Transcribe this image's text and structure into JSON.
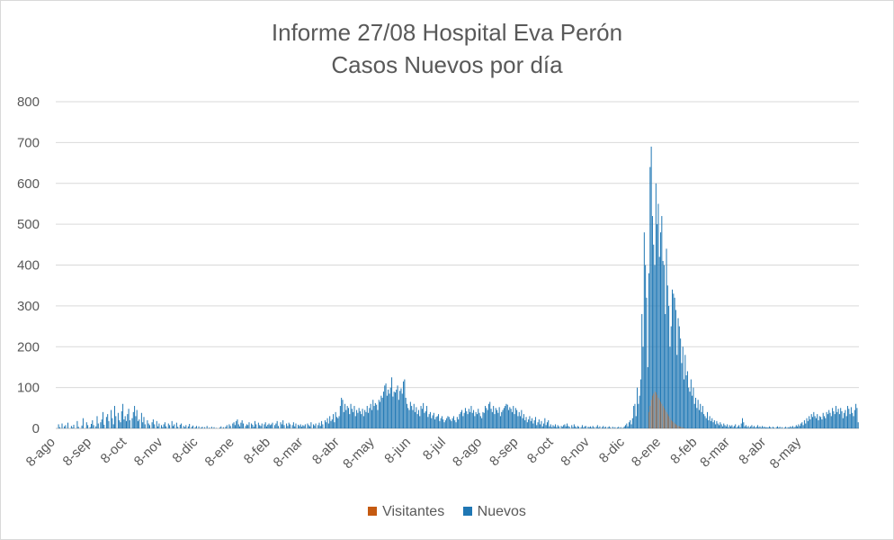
{
  "chart_data": {
    "type": "bar",
    "title": "Informe 27/08 Hospital Eva Perón",
    "subtitle": "Casos Nuevos por día",
    "xlabel": "",
    "ylabel": "",
    "ylim": [
      0,
      800
    ],
    "yticks": [
      "0",
      "100",
      "200",
      "300",
      "400",
      "500",
      "600",
      "700",
      "800"
    ],
    "x_tick_labels": [
      "8-ago",
      "8-sep",
      "8-oct",
      "8-nov",
      "8-dic",
      "8-ene",
      "8-feb",
      "8-mar",
      "8-abr",
      "8-may",
      "8-jun",
      "8-jul",
      "8-ago",
      "8-sep",
      "8-oct",
      "8-nov",
      "8-dic",
      "8-ene",
      "8-feb",
      "8-mar",
      "8-abr",
      "8-may"
    ],
    "legend": {
      "position": "bottom",
      "items": [
        "Visitantes",
        "Nuevos"
      ]
    },
    "colors": {
      "Visitantes": "#c55a11",
      "Nuevos": "#1f77b4"
    },
    "series": [
      {
        "name": "Nuevos",
        "values_by_month": [
          {
            "month": "8-ago",
            "values": [
              0,
              0,
              10,
              3,
              0,
              12,
              0,
              5,
              8,
              0,
              14,
              0,
              0,
              6,
              2,
              9,
              0,
              0,
              18,
              4,
              0,
              0,
              7,
              25,
              0,
              0,
              15,
              8,
              0,
              3,
              11
            ]
          },
          {
            "month": "8-sep",
            "values": [
              20,
              8,
              0,
              5,
              30,
              12,
              0,
              15,
              22,
              40,
              9,
              0,
              28,
              35,
              18,
              0,
              45,
              25,
              10,
              55,
              30,
              0,
              38,
              20,
              15,
              42,
              60,
              22,
              30,
              18
            ]
          },
          {
            "month": "8-oct",
            "values": [
              35,
              48,
              20,
              0,
              25,
              40,
              55,
              30,
              45,
              18,
              22,
              0,
              38,
              15,
              28,
              10,
              0,
              20,
              12,
              8,
              0,
              15,
              22,
              10,
              0,
              18,
              5,
              12,
              0,
              8,
              3
            ]
          },
          {
            "month": "8-nov",
            "values": [
              10,
              15,
              5,
              0,
              12,
              8,
              0,
              18,
              6,
              10,
              0,
              14,
              4,
              0,
              9,
              12,
              0,
              6,
              3,
              8,
              0,
              5,
              11,
              0,
              4,
              7,
              0,
              3,
              6,
              0
            ]
          },
          {
            "month": "8-dic",
            "values": [
              5,
              0,
              2,
              4,
              0,
              3,
              0,
              6,
              0,
              2,
              0,
              4,
              0,
              3,
              0,
              1,
              0,
              0,
              2,
              5,
              0,
              3,
              0,
              4,
              8,
              0,
              10,
              6,
              0,
              12,
              15
            ]
          },
          {
            "month": "8-ene",
            "values": [
              8,
              18,
              22,
              10,
              5,
              14,
              20,
              12,
              0,
              6,
              10,
              8,
              15,
              0,
              12,
              9,
              4,
              18,
              10,
              0,
              14,
              8,
              6,
              12,
              0,
              10,
              15,
              5,
              9,
              12,
              8
            ]
          },
          {
            "month": "8-feb",
            "values": [
              10,
              14,
              0,
              8,
              12,
              18,
              6,
              0,
              15,
              10,
              20,
              8,
              0,
              12,
              6,
              14,
              10,
              0,
              8,
              15,
              5,
              12,
              0,
              9,
              6,
              10,
              4,
              8
            ]
          },
          {
            "month": "8-mar",
            "values": [
              6,
              10,
              0,
              12,
              8,
              5,
              15,
              0,
              10,
              7,
              12,
              0,
              8,
              14,
              6,
              18,
              10,
              0,
              20,
              15,
              25,
              12,
              30,
              18,
              22,
              35,
              15,
              40,
              28,
              25,
              30
            ]
          },
          {
            "month": "8-abr",
            "values": [
              55,
              75,
              70,
              40,
              60,
              45,
              55,
              50,
              35,
              60,
              48,
              40,
              55,
              30,
              45,
              38,
              50,
              42,
              35,
              48,
              30,
              45,
              40,
              55,
              38,
              50,
              60,
              45,
              70,
              55
            ]
          },
          {
            "month": "8-may",
            "values": [
              62,
              58,
              45,
              70,
              65,
              80,
              75,
              90,
              105,
              110,
              80,
              95,
              85,
              100,
              125,
              78,
              90,
              88,
              95,
              105,
              70,
              92,
              98,
              85,
              115,
              120,
              75,
              60,
              50,
              45,
              65
            ]
          },
          {
            "month": "8-jun",
            "values": [
              55,
              45,
              60,
              40,
              52,
              35,
              45,
              30,
              55,
              48,
              62,
              38,
              42,
              55,
              28,
              35,
              40,
              25,
              32,
              38,
              22,
              28,
              30,
              35,
              18,
              25,
              30,
              22,
              15,
              20
            ]
          },
          {
            "month": "8-jul",
            "values": [
              25,
              30,
              28,
              22,
              18,
              25,
              30,
              20,
              15,
              28,
              22,
              35,
              40,
              45,
              30,
              38,
              50,
              42,
              35,
              48,
              40,
              55,
              38,
              45,
              30,
              40,
              35,
              48,
              38,
              30,
              25
            ]
          },
          {
            "month": "8-ago",
            "values": [
              40,
              38,
              55,
              50,
              45,
              60,
              65,
              48,
              40,
              55,
              35,
              50,
              45,
              38,
              52,
              30,
              40,
              45,
              50,
              55,
              60,
              58,
              45,
              52,
              48,
              40,
              55,
              35,
              50,
              45,
              30
            ]
          },
          {
            "month": "8-sep",
            "values": [
              40,
              30,
              45,
              25,
              35,
              20,
              28,
              15,
              22,
              30,
              18,
              25,
              12,
              20,
              28,
              8,
              15,
              22,
              10,
              18,
              5,
              12,
              25,
              8,
              15,
              20,
              5,
              10,
              3,
              8
            ]
          },
          {
            "month": "8-oct",
            "values": [
              5,
              10,
              3,
              8,
              5,
              0,
              6,
              4,
              8,
              10,
              5,
              12,
              6,
              4,
              0,
              8,
              3,
              10,
              5,
              2,
              6,
              4,
              0,
              3,
              8,
              2,
              5,
              6,
              0,
              4,
              3
            ]
          },
          {
            "month": "8-nov",
            "values": [
              5,
              2,
              6,
              3,
              0,
              4,
              8,
              2,
              5,
              0,
              3,
              6,
              2,
              4,
              0,
              3,
              5,
              2,
              0,
              4,
              1,
              3,
              0,
              2,
              4,
              1,
              3,
              0,
              2,
              5
            ]
          },
          {
            "month": "8-dic",
            "values": [
              8,
              12,
              5,
              15,
              20,
              10,
              25,
              55,
              60,
              30,
              100,
              60,
              80,
              120,
              280,
              200,
              480,
              400,
              320,
              150,
              380,
              640,
              690,
              520,
              450,
              400,
              600,
              500,
              550,
              420,
              480
            ]
          },
          {
            "month": "8-ene",
            "values": [
              520,
              410,
              400,
              280,
              440,
              350,
              300,
              200,
              250,
              340,
              330,
              320,
              290,
              180,
              270,
              250,
              220,
              160,
              200,
              120,
              180,
              130,
              140,
              100,
              90,
              120,
              80,
              100,
              60,
              75,
              50
            ]
          },
          {
            "month": "8-feb",
            "values": [
              70,
              45,
              60,
              40,
              55,
              35,
              30,
              25,
              40,
              20,
              30,
              18,
              25,
              15,
              20,
              10,
              18,
              12,
              8,
              15,
              10,
              5,
              12,
              8,
              5,
              10,
              3,
              8
            ]
          },
          {
            "month": "8-mar",
            "values": [
              5,
              8,
              3,
              6,
              10,
              2,
              5,
              8,
              3,
              12,
              25,
              15,
              5,
              8,
              3,
              6,
              2,
              5,
              8,
              3,
              6,
              2,
              4,
              8,
              3,
              5,
              2,
              6,
              3,
              4,
              2
            ]
          },
          {
            "month": "8-abr",
            "values": [
              3,
              2,
              5,
              3,
              1,
              4,
              2,
              0,
              3,
              5,
              2,
              4,
              1,
              3,
              0,
              2,
              4,
              1,
              3,
              2,
              5,
              3,
              6,
              2,
              4,
              8,
              5,
              10,
              6,
              12
            ]
          },
          {
            "month": "8-may",
            "values": [
              15,
              8,
              20,
              12,
              25,
              18,
              30,
              22,
              35,
              28,
              40,
              30,
              25,
              35,
              20,
              30,
              28,
              22,
              38,
              30,
              25,
              40,
              35,
              45,
              38,
              30,
              50,
              42,
              35,
              55,
              40,
              48,
              35,
              50,
              42,
              25,
              38,
              45,
              30,
              55,
              48,
              35,
              52,
              38,
              30,
              45,
              60,
              50,
              15
            ]
          }
        ]
      },
      {
        "name": "Visitantes",
        "values_by_month": [
          {
            "month": "8-dic",
            "values": [
              0,
              0,
              0,
              0,
              0,
              0,
              0,
              0,
              0,
              0,
              0,
              0,
              0,
              0,
              0,
              0,
              0,
              0,
              0,
              0,
              40,
              55,
              70,
              80,
              85,
              90,
              88,
              82,
              75,
              70,
              65
            ]
          },
          {
            "month": "8-ene",
            "values": [
              60,
              55,
              50,
              45,
              40,
              35,
              30,
              25,
              20,
              18,
              15,
              12,
              10,
              8,
              6,
              5,
              4,
              3,
              2,
              1,
              0,
              0,
              0,
              0,
              0,
              0,
              0,
              0,
              0,
              0,
              0
            ]
          }
        ]
      }
    ]
  }
}
